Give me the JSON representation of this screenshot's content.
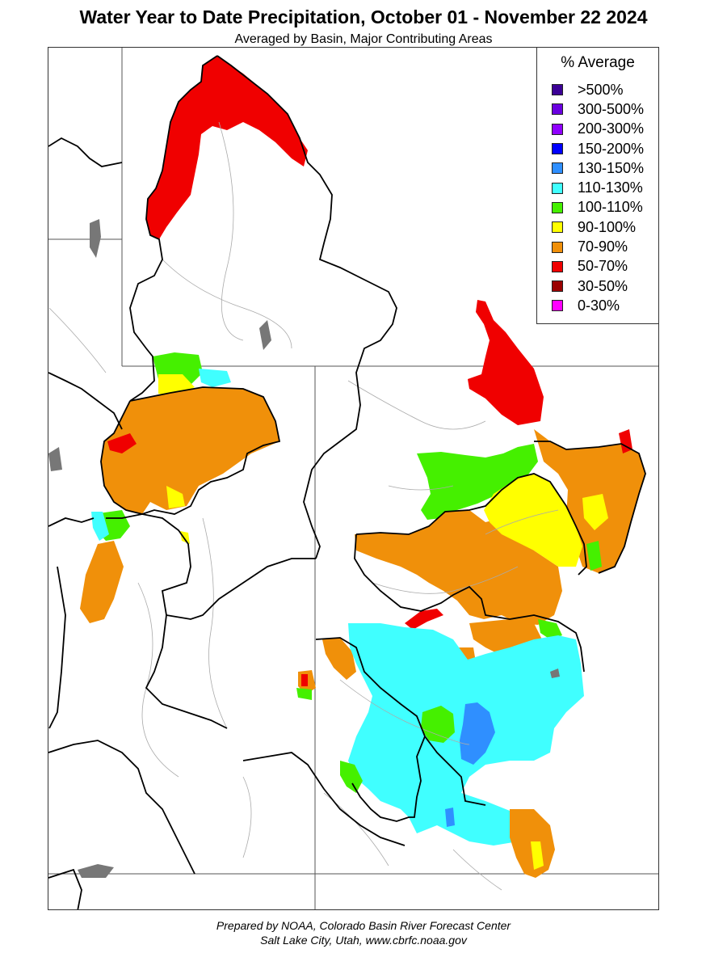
{
  "header": {
    "title": "Water Year to Date Precipitation, October 01  - November 22 2024",
    "subtitle": "Averaged by Basin, Major Contributing Areas"
  },
  "legend": {
    "title": "% Average",
    "items": [
      {
        "label": ">500%",
        "color": "#3b0096"
      },
      {
        "label": "300-500%",
        "color": "#6a00e0"
      },
      {
        "label": "200-300%",
        "color": "#8f00ff"
      },
      {
        "label": "150-200%",
        "color": "#0000ff"
      },
      {
        "label": "130-150%",
        "color": "#2f8fff"
      },
      {
        "label": "110-130%",
        "color": "#40ffff"
      },
      {
        "label": "100-110%",
        "color": "#45f000"
      },
      {
        "label": "90-100%",
        "color": "#ffff00"
      },
      {
        "label": "70-90%",
        "color": "#f0900a"
      },
      {
        "label": "50-70%",
        "color": "#f00000"
      },
      {
        "label": "30-50%",
        "color": "#9b0000"
      },
      {
        "label": "0-30%",
        "color": "#ff00ff"
      }
    ]
  },
  "footer": {
    "line1": "Prepared by NOAA, Colorado Basin River Forecast Center",
    "line2": "Salt Lake City, Utah, www.cbrfc.noaa.gov"
  }
}
